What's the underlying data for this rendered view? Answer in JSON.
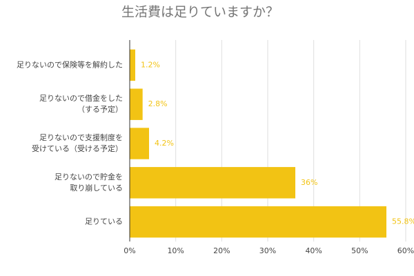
{
  "chart_data": {
    "type": "bar",
    "orientation": "horizontal",
    "title": "生活費は足りていますか？",
    "categories": [
      [
        "足りないので保険等を解約した"
      ],
      [
        "足りないので借金をした",
        "（する予定）"
      ],
      [
        "足りないので支援制度を",
        "受けている（受ける予定）"
      ],
      [
        "足りないので貯金を",
        "取り崩している"
      ],
      [
        "足りている"
      ]
    ],
    "values": [
      1.2,
      2.8,
      4.2,
      36,
      55.8
    ],
    "value_labels": [
      "1.2%",
      "2.8%",
      "4.2%",
      "36%",
      "55.8%"
    ],
    "color": "#f2c314",
    "xlim": [
      0,
      60
    ],
    "xticks": [
      {
        "value": 0,
        "label": "0%"
      },
      {
        "value": 10,
        "label": "10%"
      },
      {
        "value": 20,
        "label": "20%"
      },
      {
        "value": 30,
        "label": "30%"
      },
      {
        "value": 40,
        "label": "40%"
      },
      {
        "value": 50,
        "label": "50%"
      },
      {
        "value": 60,
        "label": "60%"
      }
    ],
    "grid": true
  }
}
